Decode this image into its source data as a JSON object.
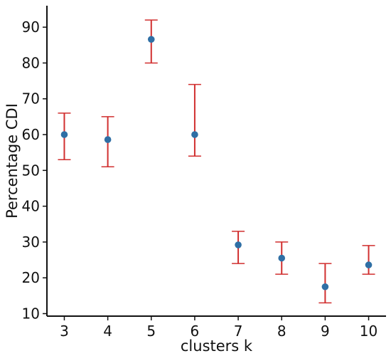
{
  "chart_data": {
    "type": "scatter",
    "title": "",
    "xlabel": "clusters k",
    "ylabel": "Percentage CDI",
    "x": [
      3,
      4,
      5,
      6,
      7,
      8,
      9,
      10
    ],
    "series": [
      {
        "values": [
          60.0,
          58.6,
          86.6,
          60.0,
          29.2,
          25.5,
          17.5,
          23.6
        ],
        "error_low": [
          53,
          51,
          80,
          54,
          24,
          21,
          13,
          21
        ],
        "error_high": [
          66,
          65,
          92,
          74,
          33,
          30,
          24,
          29
        ]
      }
    ],
    "xlim": [
      2.6,
      10.4
    ],
    "ylim": [
      9.3,
      96.0
    ],
    "xticks": [
      3,
      4,
      5,
      6,
      7,
      8,
      9,
      10
    ],
    "yticks": [
      10,
      20,
      30,
      40,
      50,
      60,
      70,
      80,
      90
    ],
    "grid": false,
    "marker_color": "#2f6fa5",
    "errorbar_color": "#d12f2f",
    "axis_color": "#111111"
  }
}
